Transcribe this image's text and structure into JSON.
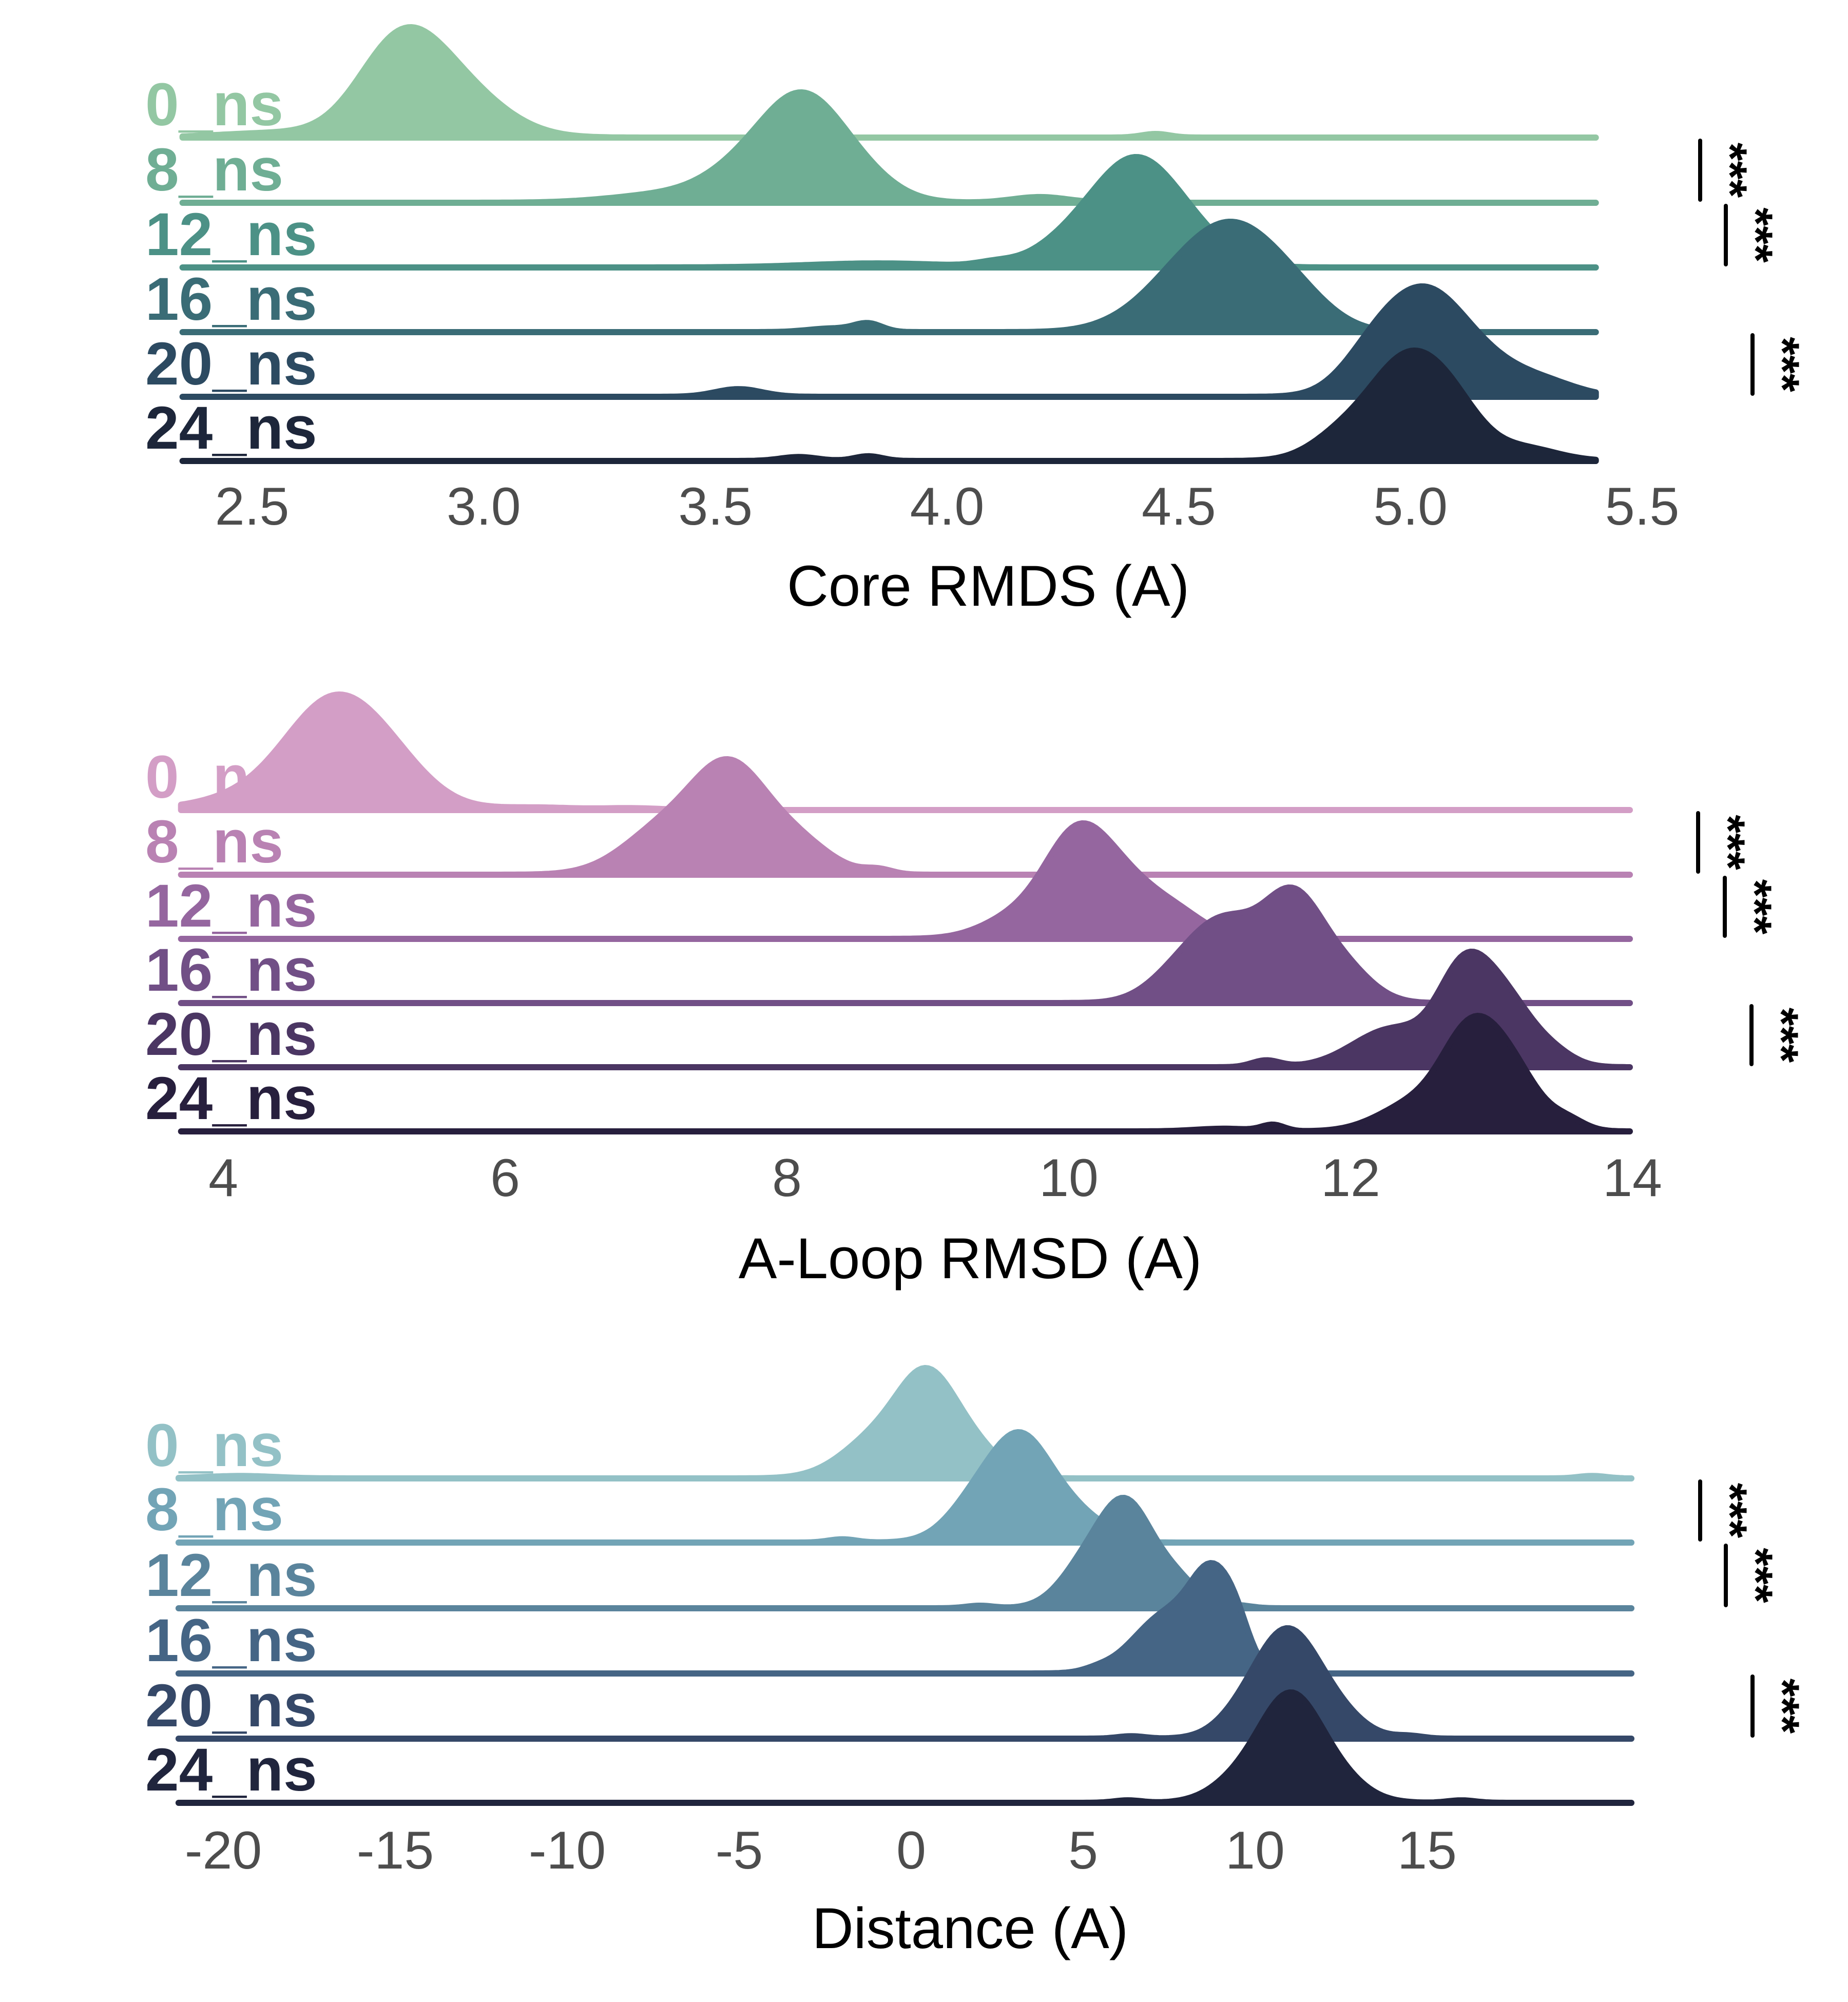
{
  "chart_data": [
    {
      "type": "ridgeline",
      "xlabel": "Core RMDS (A)",
      "xlim": [
        2.35,
        5.4
      ],
      "xticks": [
        2.5,
        3.0,
        3.5,
        4.0,
        4.5,
        5.0,
        5.5
      ],
      "tick_labels": [
        "2.5",
        "3.0",
        "3.5",
        "4.0",
        "4.5",
        "5.0",
        "5.5"
      ],
      "categories": [
        "0_ns",
        "8_ns",
        "12_ns",
        "16_ns",
        "20_ns",
        "24_ns"
      ],
      "colors": [
        "#93c7a3",
        "#6fae94",
        "#4c9186",
        "#3a6c76",
        "#2c4a61",
        "#1d263a"
      ],
      "series": [
        {
          "name": "0_ns",
          "components": [
            [
              2.82,
              0.09,
              1.0
            ],
            [
              2.95,
              0.1,
              0.45
            ],
            [
              2.55,
              0.12,
              0.05
            ],
            [
              4.45,
              0.03,
              0.04
            ]
          ]
        },
        {
          "name": "8_ns",
          "components": [
            [
              3.69,
              0.08,
              1.0
            ],
            [
              3.58,
              0.09,
              0.45
            ],
            [
              3.8,
              0.08,
              0.35
            ],
            [
              3.4,
              0.12,
              0.1
            ],
            [
              4.2,
              0.06,
              0.07
            ]
          ]
        },
        {
          "name": "12_ns",
          "components": [
            [
              4.41,
              0.08,
              1.0
            ],
            [
              4.3,
              0.09,
              0.45
            ],
            [
              4.52,
              0.08,
              0.4
            ],
            [
              3.85,
              0.15,
              0.05
            ],
            [
              4.1,
              0.04,
              0.04
            ]
          ]
        },
        {
          "name": "16_ns",
          "components": [
            [
              4.62,
              0.09,
              1.0
            ],
            [
              4.5,
              0.08,
              0.4
            ],
            [
              4.75,
              0.08,
              0.35
            ],
            [
              4.4,
              0.08,
              0.1
            ],
            [
              3.75,
              0.05,
              0.04
            ],
            [
              3.83,
              0.03,
              0.09
            ]
          ]
        },
        {
          "name": "20_ns",
          "components": [
            [
              5.03,
              0.08,
              1.0
            ],
            [
              4.92,
              0.07,
              0.45
            ],
            [
              5.15,
              0.09,
              0.4
            ],
            [
              5.3,
              0.07,
              0.12
            ],
            [
              3.55,
              0.05,
              0.09
            ]
          ]
        },
        {
          "name": "24_ns",
          "components": [
            [
              4.98,
              0.07,
              1.0
            ],
            [
              5.08,
              0.07,
              0.75
            ],
            [
              4.86,
              0.07,
              0.35
            ],
            [
              5.25,
              0.07,
              0.15
            ],
            [
              3.68,
              0.04,
              0.05
            ],
            [
              3.83,
              0.03,
              0.06
            ]
          ]
        }
      ],
      "significance": [
        {
          "from": "0_ns",
          "to": "8_ns",
          "label": "***"
        },
        {
          "from": "8_ns",
          "to": "12_ns",
          "label": "***"
        },
        {
          "from": "16_ns",
          "to": "20_ns",
          "label": "***"
        }
      ]
    },
    {
      "type": "ridgeline",
      "xlabel": "A-Loop RMSD (A)",
      "xlim": [
        3.7,
        13.95
      ],
      "xticks": [
        4,
        6,
        8,
        10,
        12,
        14
      ],
      "tick_labels": [
        "4",
        "6",
        "8",
        "10",
        "12",
        "14"
      ],
      "categories": [
        "0_ns",
        "8_ns",
        "12_ns",
        "16_ns",
        "20_ns",
        "24_ns"
      ],
      "colors": [
        "#d39ec6",
        "#b982b3",
        "#95669f",
        "#714f86",
        "#4b3663",
        "#271f3d"
      ],
      "series": [
        {
          "name": "0_ns",
          "components": [
            [
              4.75,
              0.3,
              1.0
            ],
            [
              5.15,
              0.3,
              0.55
            ],
            [
              4.35,
              0.3,
              0.2
            ],
            [
              3.9,
              0.3,
              0.05
            ],
            [
              6.2,
              0.3,
              0.03
            ],
            [
              6.9,
              0.2,
              0.02
            ]
          ]
        },
        {
          "name": "8_ns",
          "components": [
            [
              7.6,
              0.25,
              1.0
            ],
            [
              7.15,
              0.3,
              0.5
            ],
            [
              8.05,
              0.25,
              0.35
            ],
            [
              8.65,
              0.1,
              0.05
            ]
          ]
        },
        {
          "name": "12_ns",
          "components": [
            [
              10.05,
              0.22,
              1.0
            ],
            [
              10.4,
              0.25,
              0.6
            ],
            [
              9.65,
              0.25,
              0.25
            ],
            [
              10.8,
              0.2,
              0.2
            ]
          ]
        },
        {
          "name": "16_ns",
          "components": [
            [
              11.6,
              0.2,
              1.0
            ],
            [
              11.1,
              0.28,
              0.9
            ],
            [
              11.95,
              0.2,
              0.35
            ],
            [
              10.7,
              0.2,
              0.1
            ]
          ]
        },
        {
          "name": "20_ns",
          "components": [
            [
              12.8,
              0.18,
              1.0
            ],
            [
              13.1,
              0.2,
              0.75
            ],
            [
              12.3,
              0.28,
              0.45
            ],
            [
              13.45,
              0.15,
              0.12
            ],
            [
              11.4,
              0.1,
              0.08
            ]
          ]
        },
        {
          "name": "24_ns",
          "components": [
            [
              12.85,
              0.2,
              1.0
            ],
            [
              13.15,
              0.2,
              0.6
            ],
            [
              12.45,
              0.25,
              0.3
            ],
            [
              13.55,
              0.12,
              0.1
            ],
            [
              11.45,
              0.08,
              0.07
            ],
            [
              11.1,
              0.2,
              0.03
            ]
          ]
        }
      ],
      "significance": [
        {
          "from": "0_ns",
          "to": "8_ns",
          "label": "***"
        },
        {
          "from": "8_ns",
          "to": "12_ns",
          "label": "***"
        },
        {
          "from": "16_ns",
          "to": "20_ns",
          "label": "***"
        }
      ]
    },
    {
      "type": "ridgeline",
      "xlabel": "Distance (A)",
      "xlim": [
        -21.3,
        20.7
      ],
      "xticks": [
        -20,
        -15,
        -10,
        -5,
        0,
        5,
        10,
        15
      ],
      "tick_labels": [
        "-20",
        "-15",
        "-10",
        "-5",
        "0",
        "5",
        "10",
        "15"
      ],
      "categories": [
        "0_ns",
        "8_ns",
        "12_ns",
        "16_ns",
        "20_ns",
        "24_ns"
      ],
      "colors": [
        "#93c1c6",
        "#72a4b6",
        "#5a849c",
        "#456585",
        "#354868",
        "#20253d"
      ],
      "series": [
        {
          "name": "0_ns",
          "components": [
            [
              0.5,
              0.8,
              1.0
            ],
            [
              -0.8,
              1.1,
              0.55
            ],
            [
              1.8,
              0.8,
              0.35
            ],
            [
              -19.5,
              1.0,
              0.03
            ],
            [
              19.8,
              0.4,
              0.03
            ]
          ]
        },
        {
          "name": "8_ns",
          "components": [
            [
              3.3,
              0.8,
              1.0
            ],
            [
              2.1,
              0.9,
              0.6
            ],
            [
              4.7,
              0.8,
              0.35
            ],
            [
              -2.0,
              0.4,
              0.04
            ],
            [
              5.8,
              0.4,
              0.04
            ]
          ]
        },
        {
          "name": "12_ns",
          "components": [
            [
              6.3,
              0.7,
              1.0
            ],
            [
              5.2,
              0.8,
              0.55
            ],
            [
              7.6,
              0.7,
              0.35
            ],
            [
              2.0,
              0.4,
              0.03
            ],
            [
              9.5,
              0.4,
              0.03
            ]
          ]
        },
        {
          "name": "16_ns",
          "components": [
            [
              8.8,
              0.6,
              1.0
            ],
            [
              7.5,
              1.0,
              0.75
            ],
            [
              9.5,
              0.4,
              0.3
            ],
            [
              5.4,
              0.4,
              0.03
            ],
            [
              10.8,
              0.4,
              0.03
            ]
          ]
        },
        {
          "name": "20_ns",
          "components": [
            [
              10.9,
              0.8,
              1.0
            ],
            [
              12.0,
              0.9,
              0.45
            ],
            [
              9.8,
              0.8,
              0.35
            ],
            [
              6.4,
              0.4,
              0.03
            ],
            [
              14.5,
              0.4,
              0.03
            ]
          ]
        },
        {
          "name": "24_ns",
          "components": [
            [
              11.0,
              0.8,
              1.0
            ],
            [
              12.1,
              0.9,
              0.4
            ],
            [
              9.8,
              0.9,
              0.35
            ],
            [
              6.3,
              0.4,
              0.03
            ],
            [
              16.0,
              0.4,
              0.03
            ]
          ]
        }
      ],
      "significance": [
        {
          "from": "0_ns",
          "to": "8_ns",
          "label": "***"
        },
        {
          "from": "8_ns",
          "to": "12_ns",
          "label": "***"
        },
        {
          "from": "16_ns",
          "to": "20_ns",
          "label": "***"
        }
      ]
    }
  ]
}
